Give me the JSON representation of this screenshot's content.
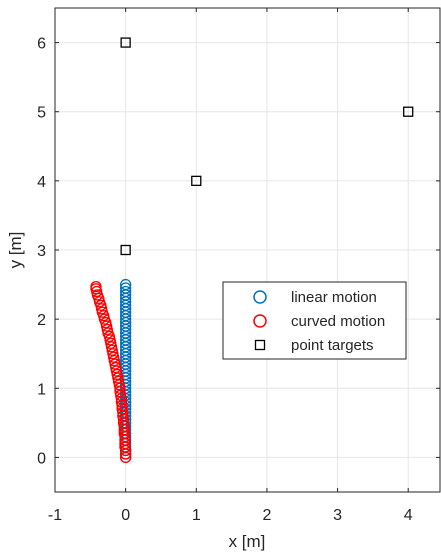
{
  "chart_data": {
    "type": "scatter",
    "xlabel": "x [m]",
    "ylabel": "y [m]",
    "xlim": [
      -1,
      4.45
    ],
    "ylim": [
      -0.5,
      6.5
    ],
    "xticks": [
      -1,
      0,
      1,
      2,
      3,
      4
    ],
    "yticks": [
      0,
      1,
      2,
      3,
      4,
      5,
      6
    ],
    "grid": true,
    "legend_position": "center-right",
    "series": [
      {
        "name": "linear motion",
        "marker": "circle",
        "color": "#0072BD",
        "x": [
          0.0,
          0.0,
          0.0,
          0.0,
          0.0,
          0.0,
          0.0,
          0.0,
          0.0,
          0.0,
          0.0,
          0.0,
          0.0,
          0.0,
          0.0,
          0.0,
          0.0,
          0.0,
          0.0,
          0.0,
          0.0,
          0.0,
          0.0,
          0.0,
          0.0,
          0.0,
          0.0,
          0.0,
          0.0,
          0.0,
          0.0,
          0.0,
          0.0,
          0.0,
          0.0,
          0.0,
          0.0,
          0.0,
          0.0,
          0.0,
          0.0,
          0.0,
          0.0,
          0.0,
          0.0,
          0.0,
          0.0,
          0.0,
          0.0,
          0.0,
          0.0
        ],
        "y": [
          0.0,
          0.05,
          0.1,
          0.15,
          0.2,
          0.25,
          0.3,
          0.35,
          0.4,
          0.45,
          0.5,
          0.55,
          0.6,
          0.65,
          0.7,
          0.75,
          0.8,
          0.85,
          0.9,
          0.95,
          1.0,
          1.05,
          1.1,
          1.15,
          1.2,
          1.25,
          1.3,
          1.35,
          1.4,
          1.45,
          1.5,
          1.55,
          1.6,
          1.65,
          1.7,
          1.75,
          1.8,
          1.85,
          1.9,
          1.95,
          2.0,
          2.05,
          2.1,
          2.15,
          2.2,
          2.25,
          2.3,
          2.35,
          2.4,
          2.45,
          2.5
        ]
      },
      {
        "name": "curved motion",
        "marker": "circle",
        "color": "#FF0000",
        "x": [
          0.0,
          0.0,
          0.0,
          -0.01,
          -0.01,
          -0.01,
          -0.01,
          -0.02,
          -0.02,
          -0.02,
          -0.03,
          -0.03,
          -0.04,
          -0.04,
          -0.05,
          -0.05,
          -0.06,
          -0.06,
          -0.07,
          -0.08,
          -0.08,
          -0.09,
          -0.1,
          -0.11,
          -0.12,
          -0.13,
          -0.14,
          -0.15,
          -0.16,
          -0.17,
          -0.18,
          -0.19,
          -0.2,
          -0.21,
          -0.22,
          -0.23,
          -0.25,
          -0.26,
          -0.27,
          -0.28,
          -0.3,
          -0.31,
          -0.33,
          -0.34,
          -0.35,
          -0.37,
          -0.38,
          -0.4,
          -0.41,
          -0.42,
          -0.42
        ],
        "y": [
          0.0,
          0.05,
          0.1,
          0.15,
          0.2,
          0.25,
          0.3,
          0.35,
          0.4,
          0.45,
          0.5,
          0.55,
          0.6,
          0.65,
          0.7,
          0.75,
          0.8,
          0.85,
          0.9,
          0.95,
          1.0,
          1.05,
          1.1,
          1.15,
          1.2,
          1.25,
          1.3,
          1.35,
          1.4,
          1.45,
          1.5,
          1.55,
          1.6,
          1.65,
          1.7,
          1.75,
          1.8,
          1.85,
          1.9,
          1.95,
          2.0,
          2.05,
          2.1,
          2.15,
          2.2,
          2.25,
          2.3,
          2.35,
          2.4,
          2.44,
          2.47
        ]
      },
      {
        "name": "point targets",
        "marker": "square",
        "color": "#000000",
        "x": [
          0,
          0,
          1,
          4
        ],
        "y": [
          3,
          6,
          4,
          5
        ]
      }
    ]
  }
}
